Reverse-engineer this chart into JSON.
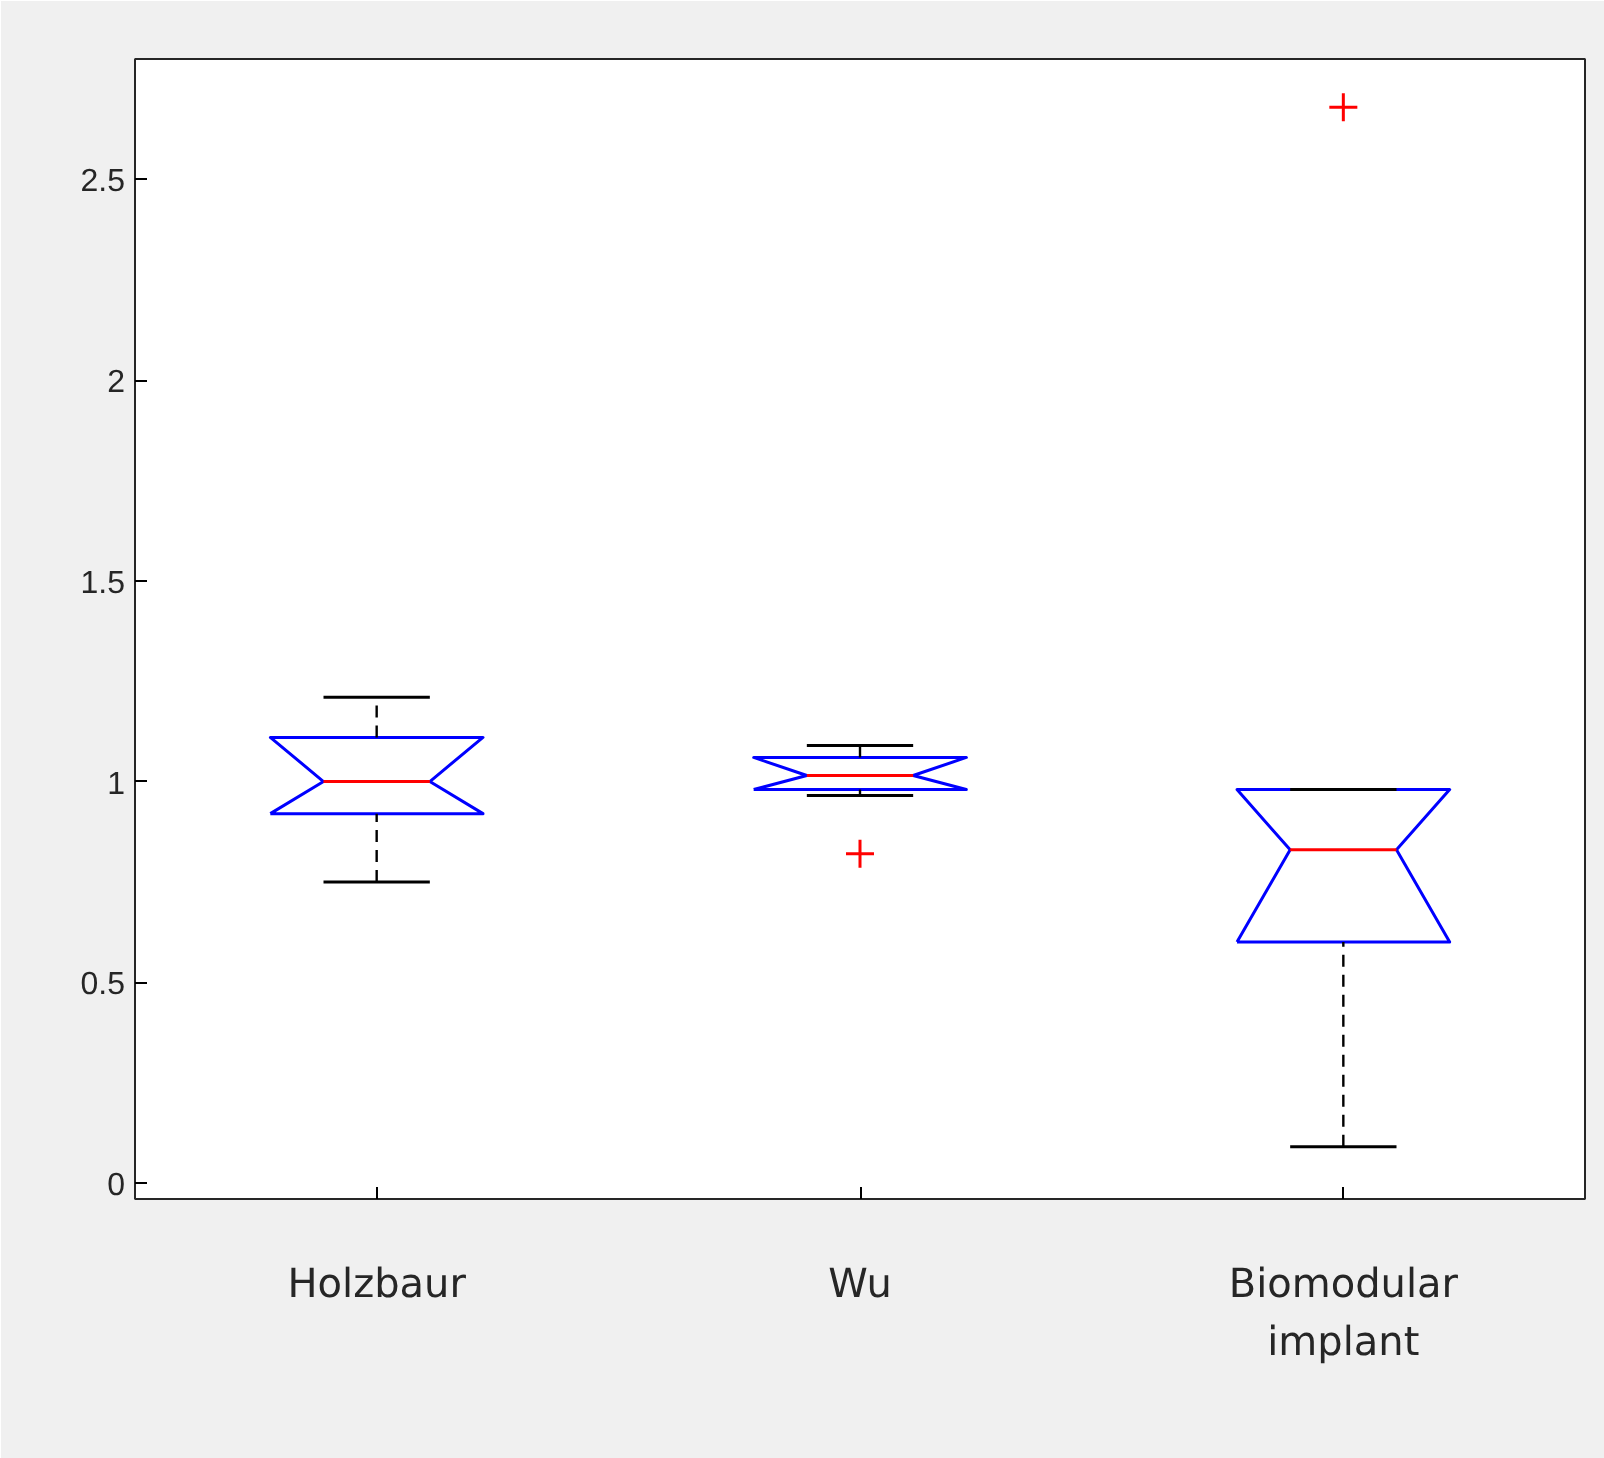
{
  "chart_data": {
    "type": "box",
    "categories": [
      "Holzbaur",
      "Wu",
      "Biomodular\nimplant"
    ],
    "boxes": [
      {
        "low": 0.75,
        "q1": 0.92,
        "median": 1.0,
        "q3": 1.11,
        "high": 1.21
      },
      {
        "low": 0.965,
        "q1": 0.98,
        "median": 1.015,
        "q3": 1.06,
        "high": 1.09,
        "outliers": [
          0.82
        ]
      },
      {
        "low": 0.09,
        "q1": 0.6,
        "median": 0.83,
        "q3": 0.98,
        "high": 0.98,
        "outliers": [
          2.68
        ]
      }
    ],
    "color": "#0000ff",
    "ylim": [
      -0.04,
      2.8
    ],
    "yticks": [
      0,
      0.5,
      1,
      1.5,
      2,
      2.5
    ],
    "grid": false
  }
}
